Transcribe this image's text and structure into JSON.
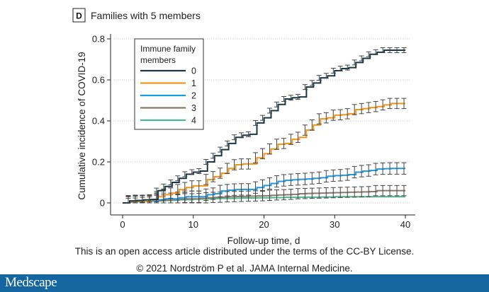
{
  "panel": {
    "letter": "D",
    "title": "Families with 5 members"
  },
  "footer": {
    "license": "This is an open access article distributed under the terms of the CC-BY License.",
    "citation": "© 2021 Nordström P et al. JAMA Internal Medicine.",
    "brand": "Medscape",
    "brand_color": "#1466a0"
  },
  "chart_data": {
    "type": "line",
    "step": true,
    "title": "Families with 5 members",
    "xlabel": "Follow-up time, d",
    "ylabel": "Cumulative incidence of COVID-19",
    "xlim": [
      0,
      40
    ],
    "ylim": [
      0,
      0.8
    ],
    "xticks": [
      0,
      10,
      20,
      30,
      40
    ],
    "yticks": [
      0,
      0.2,
      0.4,
      0.6,
      0.8
    ],
    "ytick_labels": [
      "0",
      "0.2",
      "0.4",
      "0.6",
      "0.8"
    ],
    "grid": "horizontal dotted",
    "error_bars": true,
    "legend": {
      "title": "Immune family members",
      "placement": "top-left"
    },
    "x": [
      0,
      1,
      2,
      3,
      4,
      5,
      6,
      7,
      8,
      9,
      10,
      11,
      12,
      13,
      14,
      15,
      16,
      17,
      18,
      19,
      20,
      21,
      22,
      23,
      24,
      25,
      26,
      27,
      28,
      29,
      30,
      31,
      32,
      33,
      34,
      35,
      36,
      37,
      38,
      39,
      40
    ],
    "series": [
      {
        "name": "0",
        "color": "#1c3547",
        "ci_half": 0.012,
        "values": [
          0,
          0.01,
          0.012,
          0.015,
          0.017,
          0.06,
          0.08,
          0.1,
          0.12,
          0.14,
          0.15,
          0.155,
          0.2,
          0.23,
          0.26,
          0.29,
          0.32,
          0.33,
          0.335,
          0.39,
          0.415,
          0.45,
          0.48,
          0.507,
          0.513,
          0.517,
          0.565,
          0.585,
          0.61,
          0.62,
          0.645,
          0.655,
          0.66,
          0.685,
          0.705,
          0.725,
          0.735,
          0.745,
          0.745,
          0.745,
          0.745
        ]
      },
      {
        "name": "1",
        "color": "#f0961e",
        "ci_half": 0.025,
        "values": [
          0,
          0.008,
          0.01,
          0.01,
          0.015,
          0.03,
          0.04,
          0.048,
          0.065,
          0.075,
          0.083,
          0.083,
          0.114,
          0.128,
          0.145,
          0.168,
          0.186,
          0.19,
          0.19,
          0.22,
          0.24,
          0.263,
          0.286,
          0.29,
          0.31,
          0.32,
          0.355,
          0.38,
          0.41,
          0.415,
          0.428,
          0.43,
          0.435,
          0.455,
          0.46,
          0.465,
          0.47,
          0.478,
          0.485,
          0.485,
          0.485
        ]
      },
      {
        "name": "2",
        "color": "#1f9ae0",
        "ci_half": 0.028,
        "values": [
          0,
          0.008,
          0.01,
          0.01,
          0.01,
          0.015,
          0.02,
          0.02,
          0.025,
          0.03,
          0.03,
          0.03,
          0.04,
          0.045,
          0.058,
          0.062,
          0.065,
          0.066,
          0.066,
          0.075,
          0.085,
          0.095,
          0.105,
          0.11,
          0.113,
          0.115,
          0.117,
          0.12,
          0.123,
          0.13,
          0.133,
          0.135,
          0.138,
          0.15,
          0.155,
          0.158,
          0.165,
          0.167,
          0.168,
          0.168,
          0.168
        ]
      },
      {
        "name": "3",
        "color": "#8a7a6e",
        "ci_half": 0.025,
        "values": [
          0,
          0.005,
          0.008,
          0.01,
          0.01,
          0.012,
          0.014,
          0.016,
          0.018,
          0.02,
          0.02,
          0.022,
          0.025,
          0.027,
          0.028,
          0.03,
          0.031,
          0.032,
          0.033,
          0.034,
          0.035,
          0.037,
          0.039,
          0.04,
          0.042,
          0.045,
          0.046,
          0.047,
          0.048,
          0.049,
          0.05,
          0.051,
          0.052,
          0.053,
          0.054,
          0.055,
          0.06,
          0.06,
          0.06,
          0.06,
          0.06
        ]
      },
      {
        "name": "4",
        "color": "#4fb58e",
        "ci_half": 0,
        "values": [
          0,
          0.004,
          0.006,
          0.008,
          0.01,
          0.01,
          0.012,
          0.013,
          0.015,
          0.016,
          0.018,
          0.019,
          0.02,
          0.021,
          0.022,
          0.022,
          0.023,
          0.024,
          0.024,
          0.025,
          0.025,
          0.026,
          0.026,
          0.027,
          0.027,
          0.028,
          0.028,
          0.028,
          0.029,
          0.029,
          0.03,
          0.03,
          0.03,
          0.03,
          0.03,
          0.03,
          0.03,
          0.03,
          0.03,
          0.03,
          0.03
        ]
      }
    ]
  }
}
